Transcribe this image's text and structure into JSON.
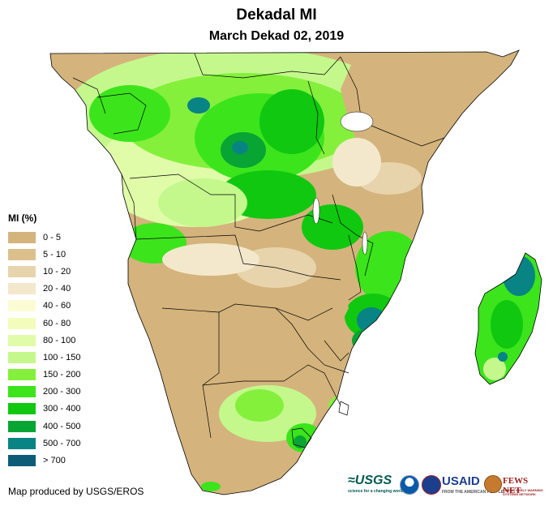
{
  "header": {
    "title": "Dekadal MI",
    "subtitle": "March Dekad 02, 2019"
  },
  "legend": {
    "title": "MI (%)",
    "items": [
      {
        "label": "0 - 5",
        "color": "#d4b47c"
      },
      {
        "label": "5 - 10",
        "color": "#dcc08c"
      },
      {
        "label": "10 - 20",
        "color": "#e8d4ac"
      },
      {
        "label": "20 - 40",
        "color": "#f4e8cc"
      },
      {
        "label": "40 - 60",
        "color": "#fcfcd4"
      },
      {
        "label": "60 - 80",
        "color": "#f4fcbc"
      },
      {
        "label": "80 - 100",
        "color": "#e0fca8"
      },
      {
        "label": "100 - 150",
        "color": "#c4f88c"
      },
      {
        "label": "150 - 200",
        "color": "#84f03c"
      },
      {
        "label": "200 - 300",
        "color": "#3ce41c"
      },
      {
        "label": "300 - 400",
        "color": "#10c810"
      },
      {
        "label": "400 - 500",
        "color": "#08a434"
      },
      {
        "label": "500 - 700",
        "color": "#088484"
      },
      {
        "label": "> 700",
        "color": "#0c5c78"
      }
    ]
  },
  "footer": {
    "credit": "Map produced by USGS/EROS"
  },
  "logos": {
    "usgs": "≈USGS",
    "usgs_tagline": "science for a changing world",
    "usaid": "USAID",
    "usaid_tagline": "FROM THE AMERICAN PEOPLE",
    "fews": "FEWS NET",
    "fews_tagline": "FAMINE EARLY WARNING SYSTEMS NETWORK"
  },
  "map": {
    "ocean_color": "#ffffff",
    "border_color": "#000000"
  }
}
